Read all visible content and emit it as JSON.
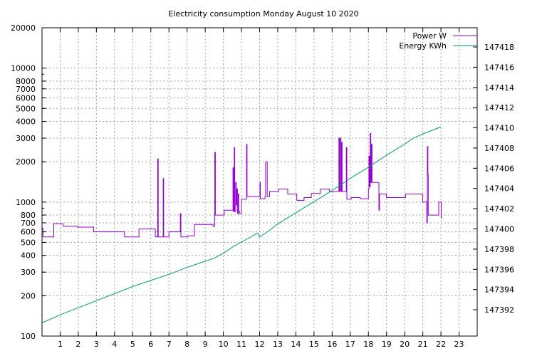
{
  "chart_data": {
    "type": "line",
    "title": "Electricity consumption Monday August 10 2020",
    "x_ticks": [
      "1",
      "2",
      "3",
      "4",
      "5",
      "6",
      "7",
      "8",
      "9",
      "10",
      "11",
      "12",
      "13",
      "14",
      "15",
      "16",
      "17",
      "18",
      "19",
      "20",
      "21",
      "22",
      "23"
    ],
    "xlim": [
      0,
      24
    ],
    "y_ticks": [
      "100",
      "200",
      "300",
      "400",
      "500",
      "600",
      "700",
      "800",
      "1000",
      "2000",
      "3000",
      "4000",
      "5000",
      "6000",
      "7000",
      "8000",
      "10000",
      "20000"
    ],
    "ylim": [
      100,
      20000
    ],
    "y_scale": "log",
    "y2_ticks": [
      "147392",
      "147394",
      "147396",
      "147398",
      "147400",
      "147402",
      "147404",
      "147406",
      "147408",
      "147410",
      "147412",
      "147414",
      "147416",
      "147418"
    ],
    "y2lim": [
      147389.4,
      147419.9
    ],
    "grid": true,
    "legend_position": "top-right",
    "colors": {
      "power": "#9400d3",
      "energy": "#009e73"
    },
    "series": [
      {
        "name": "Power W",
        "axis": "left",
        "step": true,
        "points": [
          [
            0.0,
            640
          ],
          [
            0.05,
            550
          ],
          [
            0.6,
            550
          ],
          [
            0.65,
            690
          ],
          [
            1.0,
            690
          ],
          [
            1.15,
            660
          ],
          [
            1.9,
            660
          ],
          [
            1.95,
            650
          ],
          [
            2.8,
            650
          ],
          [
            2.85,
            600
          ],
          [
            4.5,
            600
          ],
          [
            4.55,
            550
          ],
          [
            5.3,
            550
          ],
          [
            5.35,
            630
          ],
          [
            6.2,
            630
          ],
          [
            6.25,
            550
          ],
          [
            6.35,
            550
          ],
          [
            6.38,
            2100
          ],
          [
            6.41,
            550
          ],
          [
            6.65,
            550
          ],
          [
            6.68,
            1500
          ],
          [
            6.71,
            550
          ],
          [
            6.95,
            550
          ],
          [
            7.0,
            600
          ],
          [
            7.6,
            600
          ],
          [
            7.63,
            820
          ],
          [
            7.66,
            550
          ],
          [
            8.0,
            550
          ],
          [
            8.05,
            560
          ],
          [
            8.35,
            560
          ],
          [
            8.4,
            680
          ],
          [
            9.4,
            680
          ],
          [
            9.43,
            660
          ],
          [
            9.5,
            660
          ],
          [
            9.53,
            2350
          ],
          [
            9.56,
            800
          ],
          [
            10.0,
            800
          ],
          [
            10.05,
            870
          ],
          [
            10.5,
            870
          ],
          [
            10.53,
            1800
          ],
          [
            10.56,
            850
          ],
          [
            10.6,
            2550
          ],
          [
            10.63,
            850
          ],
          [
            10.68,
            1400
          ],
          [
            10.71,
            950
          ],
          [
            10.75,
            1250
          ],
          [
            10.78,
            820
          ],
          [
            10.82,
            1150
          ],
          [
            10.85,
            850
          ],
          [
            10.9,
            820
          ],
          [
            11.0,
            1050
          ],
          [
            11.25,
            1050
          ],
          [
            11.28,
            2700
          ],
          [
            11.31,
            1100
          ],
          [
            12.0,
            1100
          ],
          [
            12.02,
            1400
          ],
          [
            12.04,
            1060
          ],
          [
            12.3,
            1100
          ],
          [
            12.33,
            2000
          ],
          [
            12.38,
            2000
          ],
          [
            12.42,
            1100
          ],
          [
            12.5,
            1100
          ],
          [
            12.55,
            1200
          ],
          [
            13.0,
            1200
          ],
          [
            13.05,
            1250
          ],
          [
            13.5,
            1250
          ],
          [
            13.55,
            1150
          ],
          [
            14.0,
            1150
          ],
          [
            14.05,
            1030
          ],
          [
            14.4,
            1030
          ],
          [
            14.45,
            1080
          ],
          [
            14.8,
            1080
          ],
          [
            14.85,
            1160
          ],
          [
            15.3,
            1160
          ],
          [
            15.35,
            1250
          ],
          [
            15.8,
            1250
          ],
          [
            15.85,
            1200
          ],
          [
            16.35,
            1200
          ],
          [
            16.37,
            3000
          ],
          [
            16.4,
            1200
          ],
          [
            16.45,
            3000
          ],
          [
            16.48,
            1200
          ],
          [
            16.52,
            2800
          ],
          [
            16.55,
            1200
          ],
          [
            16.75,
            1200
          ],
          [
            16.78,
            2550
          ],
          [
            16.81,
            1050
          ],
          [
            17.0,
            1050
          ],
          [
            17.05,
            1080
          ],
          [
            17.5,
            1080
          ],
          [
            17.55,
            1060
          ],
          [
            17.95,
            1060
          ],
          [
            18.0,
            1250
          ],
          [
            18.03,
            2200
          ],
          [
            18.06,
            1300
          ],
          [
            18.1,
            3250
          ],
          [
            18.13,
            1400
          ],
          [
            18.17,
            2700
          ],
          [
            18.2,
            1400
          ],
          [
            18.55,
            1400
          ],
          [
            18.58,
            870
          ],
          [
            18.61,
            1150
          ],
          [
            18.95,
            1150
          ],
          [
            19.0,
            1080
          ],
          [
            20.0,
            1080
          ],
          [
            20.05,
            1150
          ],
          [
            20.95,
            1150
          ],
          [
            21.0,
            1000
          ],
          [
            21.2,
            1000
          ],
          [
            21.22,
            700
          ],
          [
            21.25,
            2600
          ],
          [
            21.28,
            1600
          ],
          [
            21.3,
            800
          ],
          [
            21.85,
            800
          ],
          [
            21.88,
            1000
          ],
          [
            22.0,
            1000
          ],
          [
            22.02,
            760
          ],
          [
            22.05,
            760
          ]
        ]
      },
      {
        "name": "Energy KWh",
        "axis": "right",
        "step": false,
        "points": [
          [
            0.0,
            147390.7
          ],
          [
            1.0,
            147391.5
          ],
          [
            2.0,
            147392.2
          ],
          [
            3.0,
            147392.9
          ],
          [
            4.0,
            147393.6
          ],
          [
            5.0,
            147394.3
          ],
          [
            6.0,
            147394.9
          ],
          [
            7.0,
            147395.5
          ],
          [
            8.0,
            147396.2
          ],
          [
            9.0,
            147396.8
          ],
          [
            9.5,
            147397.1
          ],
          [
            10.0,
            147397.6
          ],
          [
            10.5,
            147398.2
          ],
          [
            11.0,
            147398.7
          ],
          [
            11.5,
            147399.2
          ],
          [
            11.9,
            147399.6
          ],
          [
            12.0,
            147399.2
          ],
          [
            12.5,
            147399.8
          ],
          [
            13.0,
            147400.5
          ],
          [
            14.0,
            147401.6
          ],
          [
            15.0,
            147402.7
          ],
          [
            16.0,
            147403.8
          ],
          [
            17.0,
            147405.0
          ],
          [
            18.0,
            147406.1
          ],
          [
            19.0,
            147407.3
          ],
          [
            20.0,
            147408.4
          ],
          [
            20.5,
            147409.0
          ],
          [
            21.0,
            147409.4
          ],
          [
            22.0,
            147410.1
          ]
        ]
      }
    ]
  }
}
